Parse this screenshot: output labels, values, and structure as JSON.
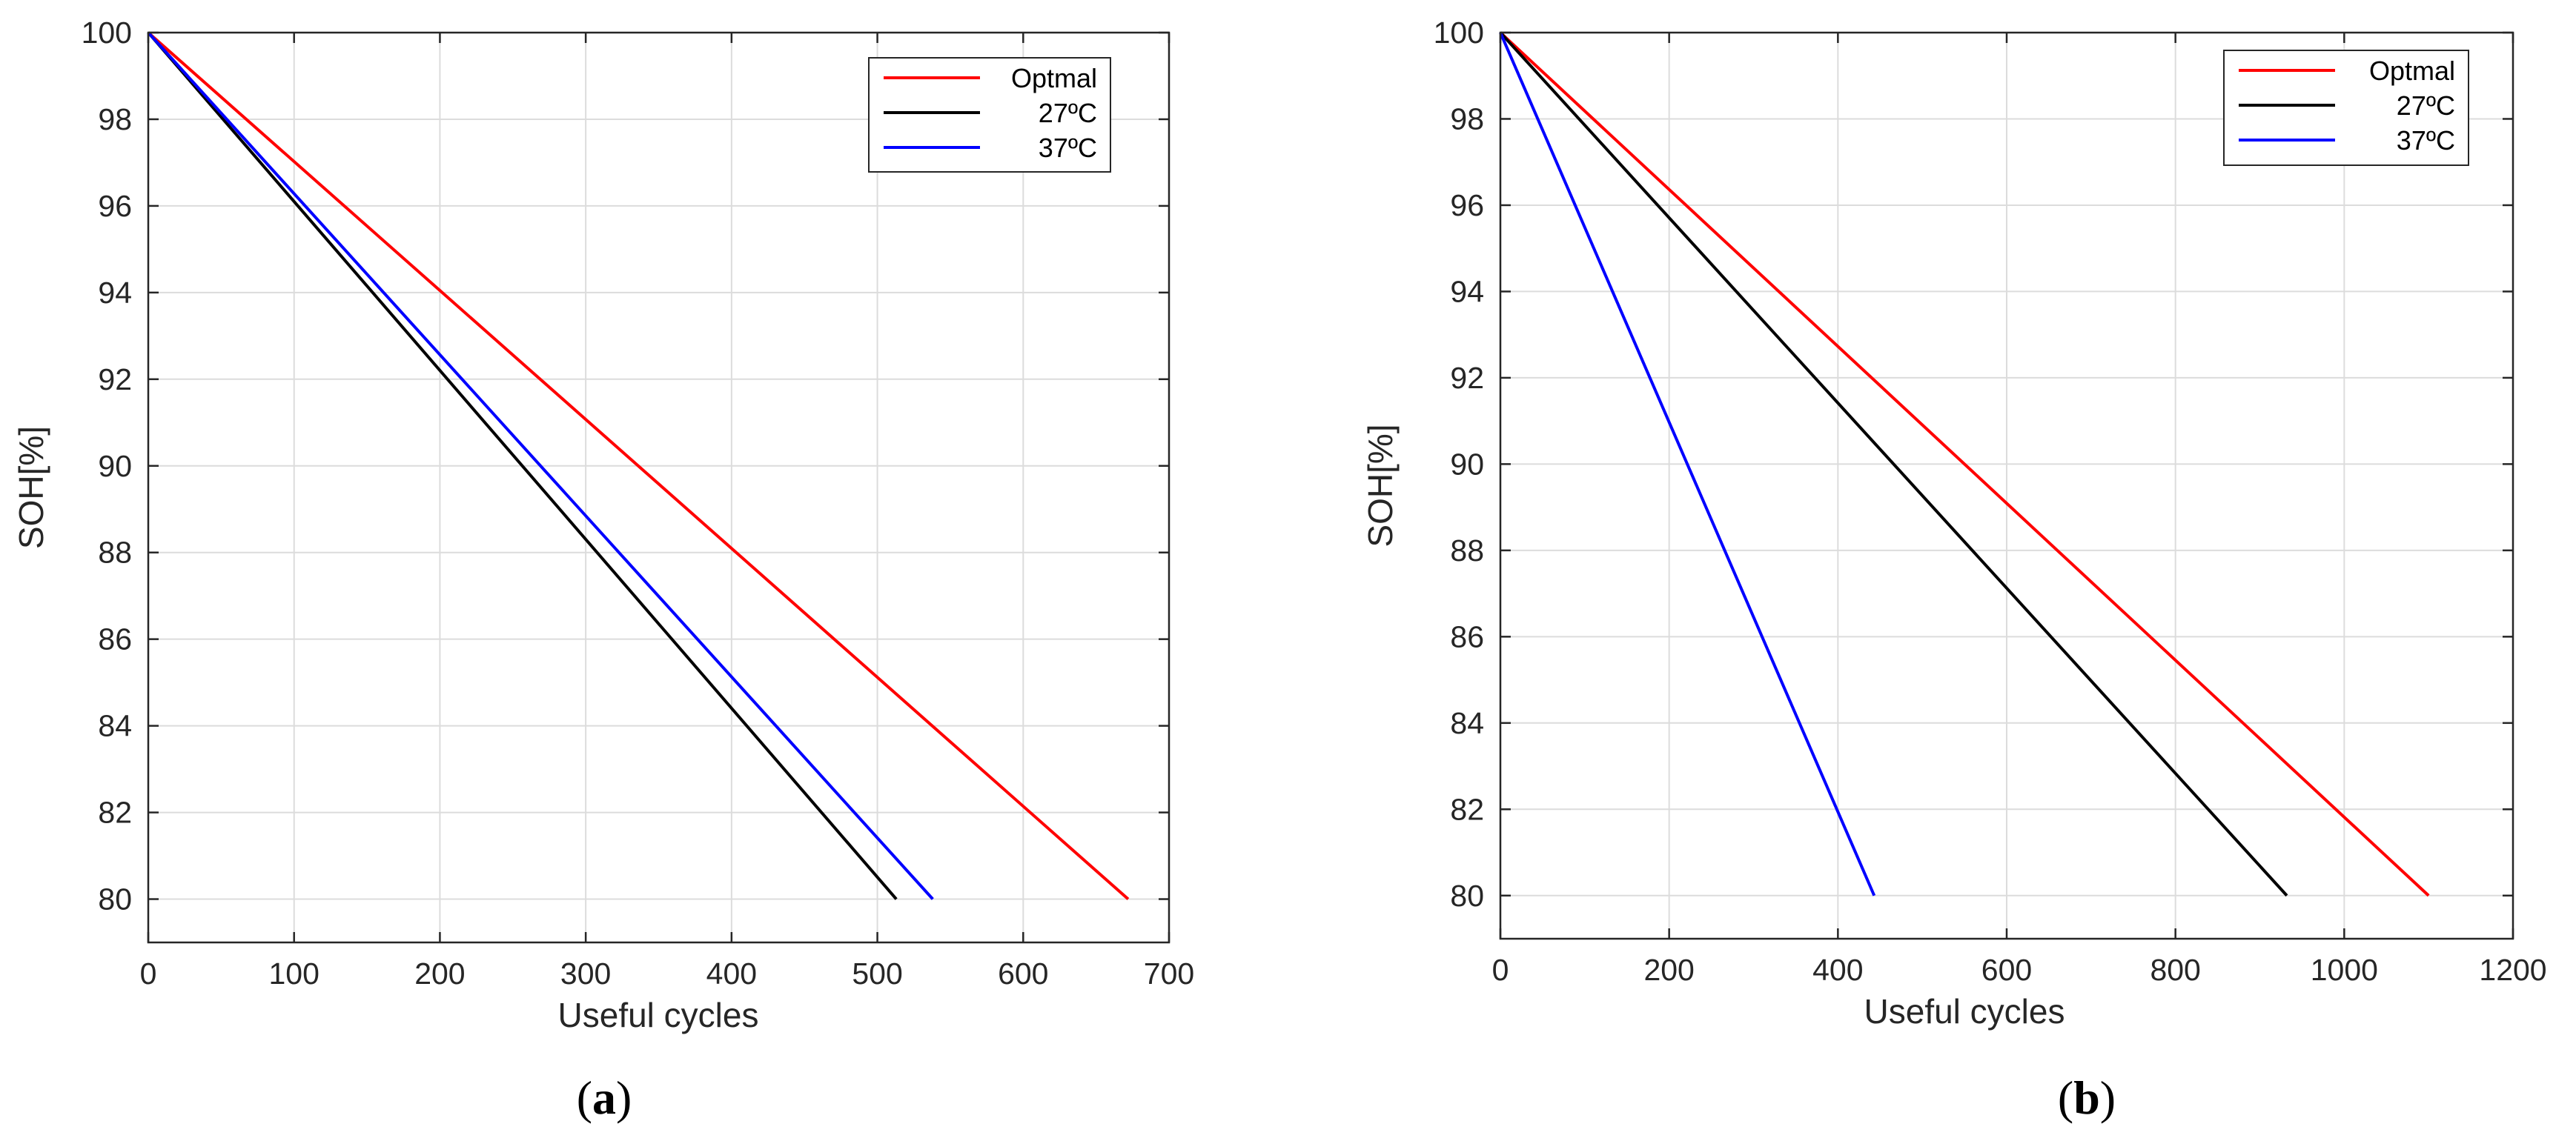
{
  "colors": {
    "optimal": "#ff0000",
    "c27": "#000000",
    "c37": "#0000ff",
    "grid": "#dcdcdc",
    "axis": "#262626"
  },
  "chart_data": [
    {
      "type": "line",
      "panel": "a",
      "caption": {
        "open": "(",
        "letter": "a",
        "close": ")"
      },
      "xlabel": "Useful cycles",
      "ylabel": "SOH[%]",
      "xlim": [
        0,
        700
      ],
      "ylim": [
        79,
        100
      ],
      "xticks": [
        0,
        100,
        200,
        300,
        400,
        500,
        600,
        700
      ],
      "yticks": [
        80,
        82,
        84,
        86,
        88,
        90,
        92,
        94,
        96,
        98,
        100
      ],
      "grid": true,
      "legend_position": "top-right",
      "series": [
        {
          "name": "Optmal",
          "color": "#ff0000",
          "x": [
            0,
            672
          ],
          "y": [
            100,
            80
          ]
        },
        {
          "name": "27ºC",
          "color": "#000000",
          "x": [
            0,
            513
          ],
          "y": [
            100,
            80
          ]
        },
        {
          "name": "37ºC",
          "color": "#0000ff",
          "x": [
            0,
            538
          ],
          "y": [
            100,
            80
          ]
        }
      ]
    },
    {
      "type": "line",
      "panel": "b",
      "caption": {
        "open": "(",
        "letter": "b",
        "close": ")"
      },
      "xlabel": "Useful cycles",
      "ylabel": "SOH[%]",
      "xlim": [
        0,
        1200
      ],
      "ylim": [
        79,
        100
      ],
      "xticks": [
        0,
        200,
        400,
        600,
        800,
        1000,
        1200
      ],
      "yticks": [
        80,
        82,
        84,
        86,
        88,
        90,
        92,
        94,
        96,
        98,
        100
      ],
      "grid": true,
      "legend_position": "top-right",
      "series": [
        {
          "name": "Optmal",
          "color": "#ff0000",
          "x": [
            0,
            1100
          ],
          "y": [
            100,
            80
          ]
        },
        {
          "name": "27ºC",
          "color": "#000000",
          "x": [
            0,
            932
          ],
          "y": [
            100,
            80
          ]
        },
        {
          "name": "37ºC",
          "color": "#0000ff",
          "x": [
            0,
            443
          ],
          "y": [
            100,
            80
          ]
        }
      ]
    }
  ]
}
